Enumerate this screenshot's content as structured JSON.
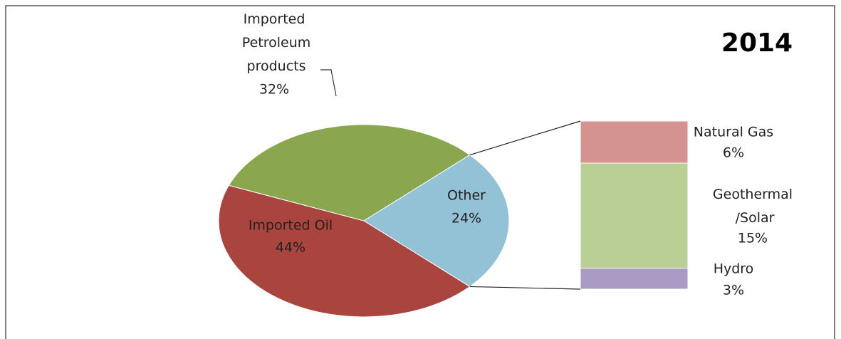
{
  "chart_data": {
    "type": "pie",
    "title": "2014",
    "categories": [
      "Imported Oil",
      "Imported Petroleum products",
      "Other"
    ],
    "values": [
      44,
      32,
      24
    ],
    "value_labels": [
      "44%",
      "32%",
      "24%"
    ],
    "colors": [
      "#a9443f",
      "#8aa64e",
      "#93c2d6"
    ],
    "breakdown": {
      "categories": [
        "Natural Gas",
        "Geothermal /Solar",
        "Hydro"
      ],
      "values": [
        6,
        15,
        3
      ],
      "value_labels": [
        "6%",
        "15%",
        "3%"
      ],
      "colors": [
        "#d49391",
        "#b9cf96",
        "#a99bc4"
      ]
    }
  }
}
